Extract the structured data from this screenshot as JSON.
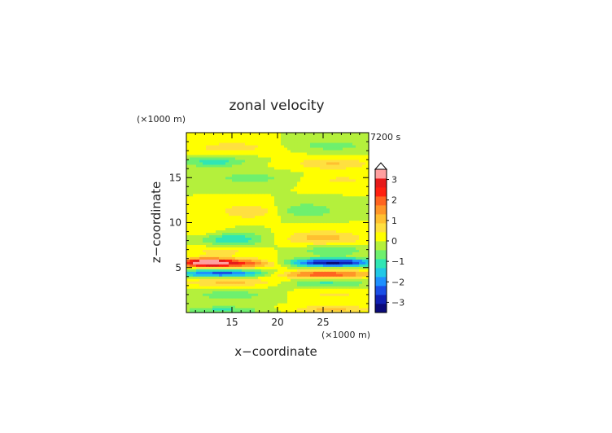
{
  "chart_data": {
    "type": "heatmap",
    "title": "zonal velocity",
    "time_label": "7200 s",
    "xlabel": "x−coordinate",
    "ylabel": "z−coordinate",
    "x_unit": "(×1000 m)",
    "y_unit": "(×1000 m)",
    "xlim": [
      10,
      30
    ],
    "ylim": [
      0,
      20
    ],
    "x_ticks": [
      "15",
      "20",
      "25"
    ],
    "y_ticks": [
      "5",
      "10",
      "15"
    ],
    "colorbar": {
      "min": -3.5,
      "max": 3.5,
      "ticks": [
        "3",
        "2",
        "1",
        "0",
        "−1",
        "−2",
        "−3"
      ],
      "colors": [
        "#0a0a7a",
        "#1020b4",
        "#1a4ee6",
        "#1e90ff",
        "#20c8e6",
        "#30e6b4",
        "#6ef06e",
        "#b4f03c",
        "#ffff00",
        "#ffe040",
        "#ffc030",
        "#ff9628",
        "#ff6420",
        "#ff2010",
        "#e61a1a",
        "#ffa0a0"
      ]
    },
    "features": [
      {
        "x": 15,
        "z": 18.4,
        "v": 0.7,
        "sx": 3.0,
        "sz": 0.45
      },
      {
        "x": 26,
        "z": 18.6,
        "v": -0.7,
        "sx": 2.8,
        "sz": 0.4
      },
      {
        "x": 13,
        "z": 16.8,
        "v": -1.1,
        "sx": 2.5,
        "sz": 0.4
      },
      {
        "x": 26,
        "z": 16.6,
        "v": 0.9,
        "sx": 3.0,
        "sz": 0.45
      },
      {
        "x": 17,
        "z": 15.0,
        "v": -0.6,
        "sx": 3.5,
        "sz": 0.5
      },
      {
        "x": 27,
        "z": 14.8,
        "v": 0.5,
        "sx": 3.0,
        "sz": 0.5
      },
      {
        "x": 17,
        "z": 11.3,
        "v": 0.9,
        "sx": 2.3,
        "sz": 0.55
      },
      {
        "x": 23,
        "z": 11.4,
        "v": -0.9,
        "sx": 2.3,
        "sz": 0.55
      },
      {
        "x": 12,
        "z": 9.0,
        "v": 0.4,
        "sx": 2.0,
        "sz": 0.5
      },
      {
        "x": 15,
        "z": 8.2,
        "v": -1.3,
        "sx": 2.5,
        "sz": 0.55
      },
      {
        "x": 25,
        "z": 8.3,
        "v": 1.1,
        "sx": 3.0,
        "sz": 0.6
      },
      {
        "x": 14,
        "z": 6.9,
        "v": 0.6,
        "sx": 3.0,
        "sz": 0.45
      },
      {
        "x": 26,
        "z": 7.0,
        "v": -0.8,
        "sx": 3.0,
        "sz": 0.45
      },
      {
        "x": 12,
        "z": 5.6,
        "v": 3.4,
        "sx": 2.0,
        "sz": 0.32
      },
      {
        "x": 16,
        "z": 5.5,
        "v": 2.0,
        "sx": 3.0,
        "sz": 0.35
      },
      {
        "x": 26,
        "z": 5.6,
        "v": -3.2,
        "sx": 3.5,
        "sz": 0.32
      },
      {
        "x": 14,
        "z": 4.4,
        "v": -2.4,
        "sx": 4.0,
        "sz": 0.3
      },
      {
        "x": 25,
        "z": 4.3,
        "v": 2.2,
        "sx": 4.0,
        "sz": 0.3
      },
      {
        "x": 15,
        "z": 3.4,
        "v": 1.0,
        "sx": 4.0,
        "sz": 0.35
      },
      {
        "x": 25,
        "z": 3.3,
        "v": -1.0,
        "sx": 3.5,
        "sz": 0.35
      },
      {
        "x": 15,
        "z": 2.0,
        "v": -0.6,
        "sx": 4.0,
        "sz": 0.5
      },
      {
        "x": 26,
        "z": 2.0,
        "v": 0.5,
        "sx": 3.5,
        "sz": 0.5
      },
      {
        "x": 14,
        "z": 0.3,
        "v": -1.0,
        "sx": 3.0,
        "sz": 0.3
      },
      {
        "x": 26,
        "z": 0.4,
        "v": 1.0,
        "sx": 3.0,
        "sz": 0.3
      }
    ]
  }
}
